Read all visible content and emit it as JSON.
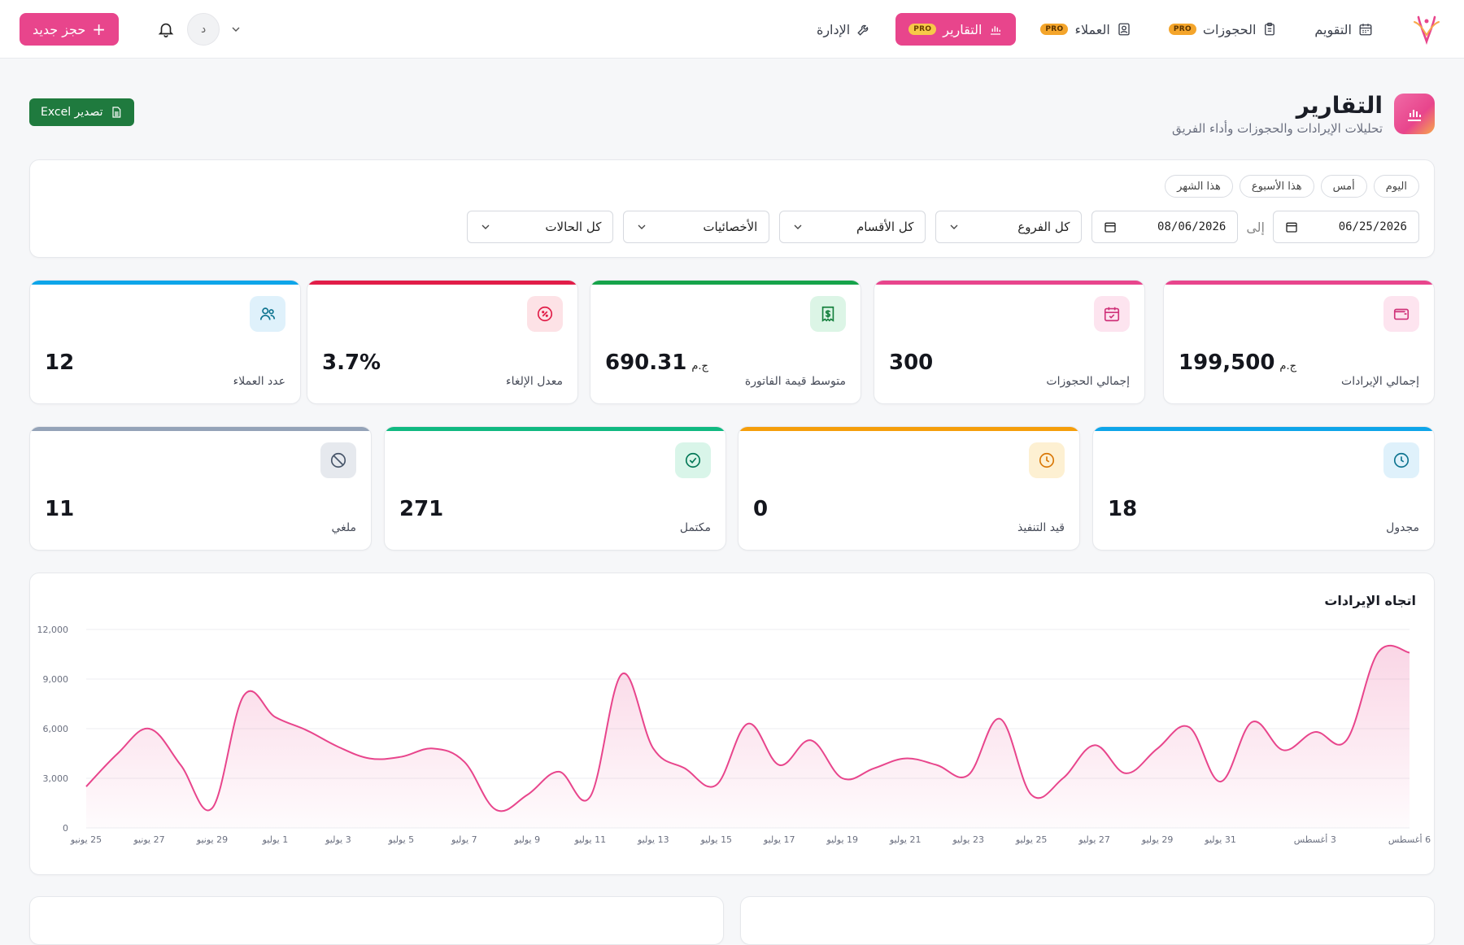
{
  "nav": {
    "items": [
      {
        "label": "التقويم",
        "icon": "calendar-icon",
        "pro": ""
      },
      {
        "label": "الحجوزات",
        "icon": "clipboard-icon",
        "pro": "PRO"
      },
      {
        "label": "العملاء",
        "icon": "contact-card-icon",
        "pro": "PRO"
      },
      {
        "label": "التقارير",
        "icon": "bar-chart-icon",
        "pro": "PRO",
        "active": true
      },
      {
        "label": "الإدارة",
        "icon": "wrench-icon",
        "pro": ""
      }
    ],
    "new_booking": "حجز جديد",
    "avatar_initial": "د"
  },
  "header": {
    "title": "التقارير",
    "subtitle": "تحليلات الإيرادات والحجوزات وأداء الفريق",
    "export_label": "تصدير Excel"
  },
  "filters": {
    "presets": [
      "اليوم",
      "أمس",
      "هذا الأسبوع",
      "هذا الشهر"
    ],
    "date_from": "06/25/2026",
    "date_to": "08/06/2026",
    "to_label": "إلى",
    "branch": "كل الفروع",
    "department": "كل الأقسام",
    "specialist": "الأخصائيات",
    "status": "كل الحالات"
  },
  "stats_row1": [
    {
      "label": "إجمالي الإيرادات",
      "value": "199,500",
      "currency": "ج.م",
      "color": "#e8458c",
      "icon_bg": "#fde4ef",
      "icon": "wallet-icon"
    },
    {
      "label": "إجمالي الحجوزات",
      "value": "300",
      "currency": "",
      "color": "#e8458c",
      "icon_bg": "#fde4ef",
      "icon": "calendar-check-icon"
    },
    {
      "label": "متوسط قيمة الفاتورة",
      "value": "690.31",
      "currency": "ج.م",
      "color": "#16a34a",
      "icon_bg": "#dcf5e6",
      "icon": "receipt-icon"
    },
    {
      "label": "معدل الإلغاء",
      "value": "3.7%",
      "currency": "",
      "color": "#e11d48",
      "icon_bg": "#fde2e6",
      "icon": "percent-icon"
    },
    {
      "label": "عدد العملاء",
      "value": "12",
      "currency": "",
      "color": "#0ea5e9",
      "icon_bg": "#dff1fb",
      "icon": "users-icon"
    }
  ],
  "stats_row2": [
    {
      "label": "مجدول",
      "value": "18",
      "color": "#0ea5e9",
      "icon_bg": "#dff1fb",
      "icon": "clock-icon"
    },
    {
      "label": "قيد التنفيذ",
      "value": "0",
      "color": "#f59e0b",
      "icon_bg": "#fdf0d2",
      "icon": "clock-icon"
    },
    {
      "label": "مكتمل",
      "value": "271",
      "color": "#10b981",
      "icon_bg": "#d9f5e9",
      "icon": "check-circle-icon"
    },
    {
      "label": "ملغي",
      "value": "11",
      "color": "#94a3b8",
      "icon_bg": "#e6e9ee",
      "icon": "ban-icon"
    }
  ],
  "chart_data": {
    "type": "area",
    "title": "اتجاه الإيرادات",
    "ylim": [
      0,
      12000
    ],
    "yticks": [
      "0",
      "3,000",
      "6,000",
      "9,000",
      "12,000"
    ],
    "ytick_values": [
      0,
      3000,
      6000,
      9000,
      12000
    ],
    "xlabels": [
      "25 يونيو",
      "27 يونيو",
      "29 يونيو",
      "1 يوليو",
      "3 يوليو",
      "5 يوليو",
      "7 يوليو",
      "9 يوليو",
      "11 يوليو",
      "13 يوليو",
      "15 يوليو",
      "17 يوليو",
      "19 يوليو",
      "21 يوليو",
      "23 يوليو",
      "25 يوليو",
      "27 يوليو",
      "29 يوليو",
      "31 يوليو",
      "3 أغسطس",
      "6 أغسطس"
    ],
    "xlabel_days": [
      0,
      2,
      4,
      6,
      8,
      10,
      12,
      14,
      16,
      18,
      20,
      22,
      24,
      26,
      28,
      30,
      32,
      34,
      36,
      39,
      42
    ],
    "days": [
      0,
      1,
      2,
      3,
      4,
      5,
      6,
      7,
      8,
      9,
      10,
      11,
      12,
      13,
      14,
      15,
      16,
      17,
      18,
      19,
      20,
      21,
      22,
      23,
      24,
      25,
      26,
      27,
      28,
      29,
      30,
      31,
      32,
      33,
      34,
      35,
      36,
      37,
      38,
      39,
      40,
      41,
      42
    ],
    "values": [
      2500,
      4500,
      6000,
      3800,
      1200,
      8000,
      6700,
      5900,
      4900,
      4200,
      4300,
      4800,
      4000,
      1100,
      2000,
      3400,
      1900,
      9300,
      4800,
      3600,
      2600,
      6300,
      3800,
      5300,
      3000,
      3600,
      4200,
      3800,
      3200,
      6600,
      2000,
      3000,
      5000,
      3300,
      4800,
      6100,
      2800,
      6400,
      4700,
      5800,
      5300,
      10600,
      10600
    ],
    "line_color": "#e8458c"
  }
}
